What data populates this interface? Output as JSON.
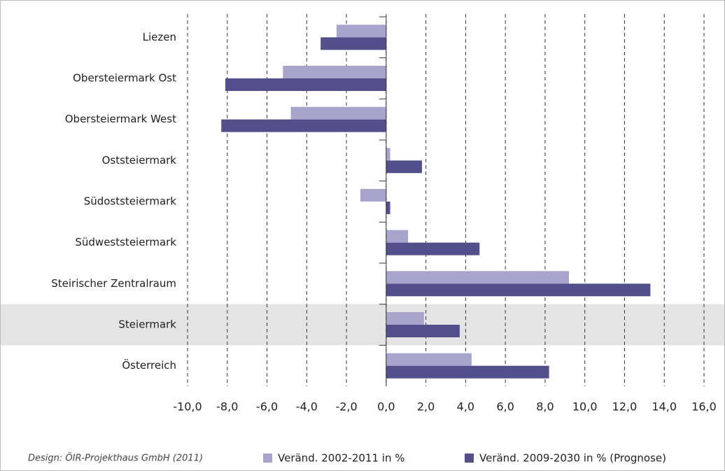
{
  "chart_data": {
    "type": "barh",
    "categories": [
      "Liezen",
      "Obersteiermark Ost",
      "Obersteiermark West",
      "Oststeiermark",
      "Südoststeiermark",
      "Südweststeiermark",
      "Steirischer Zentralraum",
      "Steiermark",
      "Österreich"
    ],
    "series": [
      {
        "name": "Veränd. 2002-2011 in %",
        "color": "#a9a4cc",
        "values": [
          -2.5,
          -5.2,
          -4.8,
          0.2,
          -1.3,
          1.1,
          9.2,
          1.9,
          4.3
        ]
      },
      {
        "name": "Veränd. 2009-2030 in % (Prognose)",
        "color": "#524f8a",
        "values": [
          -3.3,
          -8.1,
          -8.3,
          1.8,
          0.2,
          4.7,
          13.3,
          3.7,
          8.2
        ]
      }
    ],
    "xlim": [
      -10,
      16
    ],
    "xticks": [
      {
        "value": -10,
        "label": "-10,0"
      },
      {
        "value": -8,
        "label": "-8,0"
      },
      {
        "value": -6,
        "label": "-6,0"
      },
      {
        "value": -4,
        "label": "-4,0"
      },
      {
        "value": -2,
        "label": "-2,0"
      },
      {
        "value": 0,
        "label": "0,0"
      },
      {
        "value": 2,
        "label": "2,0"
      },
      {
        "value": 4,
        "label": "4,0"
      },
      {
        "value": 6,
        "label": "6,0"
      },
      {
        "value": 8,
        "label": "8,0"
      },
      {
        "value": 10,
        "label": "10,0"
      },
      {
        "value": 12,
        "label": "12,0"
      },
      {
        "value": 14,
        "label": "14,0"
      },
      {
        "value": 16,
        "label": "16,0"
      }
    ],
    "grid": true,
    "highlight_index": 7,
    "legend": "bottom",
    "source_note": "Design: ÖIR-Projekthaus GmbH (2011)"
  }
}
